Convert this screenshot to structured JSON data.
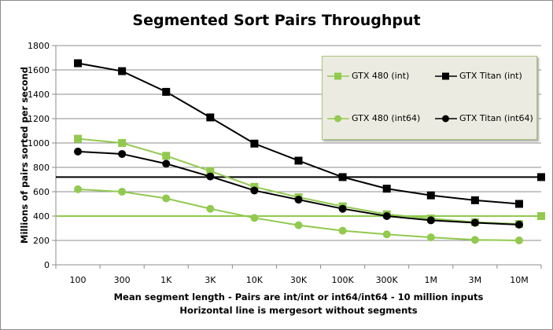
{
  "chart_data": {
    "type": "line",
    "title": "Segmented Sort Pairs Throughput",
    "xlabel": "Mean segment length - Pairs are int/int or int64/int64 - 10 million inputs",
    "xlabel2": "Horizontal line is mergesort without segments",
    "ylabel": "Millions of pairs sorted per second",
    "categories": [
      "100",
      "300",
      "1K",
      "3K",
      "10K",
      "30K",
      "100K",
      "300K",
      "1M",
      "3M",
      "10M"
    ],
    "ylim": [
      0,
      1800
    ],
    "yticks": [
      0,
      200,
      400,
      600,
      800,
      1000,
      1200,
      1400,
      1600,
      1800
    ],
    "grid": true,
    "legend_position": "top-right",
    "series": [
      {
        "name": "GTX 480 (int)",
        "color": "#92c94f",
        "marker": "square",
        "values": [
          1035,
          1000,
          895,
          770,
          640,
          555,
          480,
          415,
          380,
          350,
          335
        ]
      },
      {
        "name": "GTX Titan (int)",
        "color": "#000000",
        "marker": "square",
        "values": [
          1655,
          1590,
          1420,
          1210,
          995,
          855,
          720,
          625,
          570,
          530,
          500
        ]
      },
      {
        "name": "GTX 480 (int64)",
        "color": "#92c94f",
        "marker": "circle",
        "values": [
          620,
          600,
          545,
          460,
          385,
          325,
          280,
          250,
          225,
          205,
          200
        ]
      },
      {
        "name": "GTX Titan (int64)",
        "color": "#000000",
        "marker": "circle",
        "values": [
          930,
          910,
          830,
          725,
          610,
          535,
          460,
          400,
          365,
          345,
          330
        ]
      }
    ],
    "reference_lines": [
      {
        "color": "#000000",
        "value": 720
      },
      {
        "color": "#92c94f",
        "value": 400
      }
    ]
  }
}
